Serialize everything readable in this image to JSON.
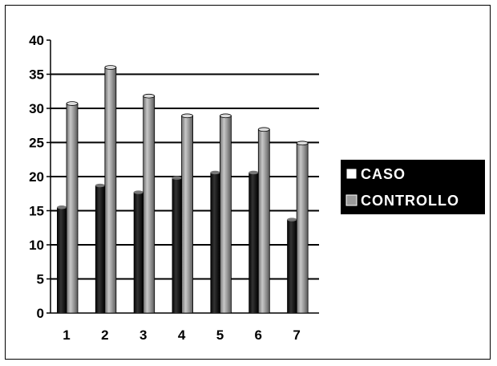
{
  "chart_data": {
    "type": "bar",
    "title": "",
    "xlabel": "",
    "ylabel": "",
    "categories": [
      "1",
      "2",
      "3",
      "4",
      "5",
      "6",
      "7"
    ],
    "series": [
      {
        "name": "CASO",
        "values": [
          15.5,
          18.7,
          17.7,
          19.8,
          20.6,
          20.6,
          13.7
        ],
        "color": "#000000"
      },
      {
        "name": "CONTROLLO",
        "values": [
          30.7,
          36.0,
          31.8,
          28.9,
          28.9,
          26.9,
          24.9
        ],
        "color": "#8c8c8c"
      }
    ],
    "ylim": [
      0,
      40
    ],
    "yticks": [
      "0",
      "5",
      "10",
      "15",
      "20",
      "25",
      "30",
      "35",
      "40"
    ],
    "grid": true,
    "legend_position": "right"
  }
}
